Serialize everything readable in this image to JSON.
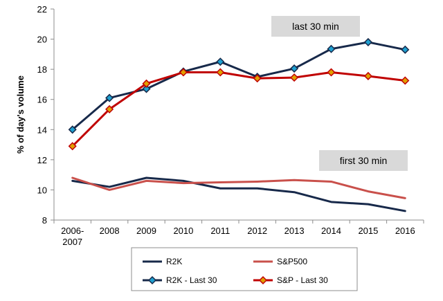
{
  "chart_data": {
    "type": "line",
    "categories": [
      "2006-\n2007",
      "2008",
      "2009",
      "2010",
      "2011",
      "2012",
      "2013",
      "2014",
      "2015",
      "2016"
    ],
    "ylabel": "% of day's volume",
    "ylim": [
      8,
      22
    ],
    "yticks": [
      8,
      10,
      12,
      14,
      16,
      18,
      20,
      22
    ],
    "grid": false,
    "legend_position": "bottom",
    "series": [
      {
        "name": "R2K",
        "color": "#17294a",
        "marker": "none",
        "values": [
          10.6,
          10.2,
          10.8,
          10.6,
          10.1,
          10.1,
          9.85,
          9.2,
          9.05,
          8.6
        ]
      },
      {
        "name": "S&P500",
        "color": "#c9504b",
        "marker": "none",
        "values": [
          10.8,
          10.0,
          10.6,
          10.45,
          10.5,
          10.55,
          10.65,
          10.55,
          9.9,
          9.45
        ]
      },
      {
        "name": "R2K - Last 30",
        "color": "#17294a",
        "marker": "diamond",
        "marker_color": "#1fa0d0",
        "values": [
          14.0,
          16.1,
          16.7,
          17.85,
          18.5,
          17.5,
          18.05,
          19.35,
          19.8,
          19.3
        ]
      },
      {
        "name": "S&P - Last 30",
        "color": "#c00000",
        "marker": "diamond",
        "marker_color": "#e0a000",
        "values": [
          12.9,
          15.35,
          17.05,
          17.8,
          17.8,
          17.4,
          17.45,
          17.8,
          17.55,
          17.25
        ]
      }
    ],
    "annotations": [
      {
        "text": "last 30 min",
        "background": "#d9d9d9"
      },
      {
        "text": "first 30 min",
        "background": "#d9d9d9"
      }
    ]
  }
}
